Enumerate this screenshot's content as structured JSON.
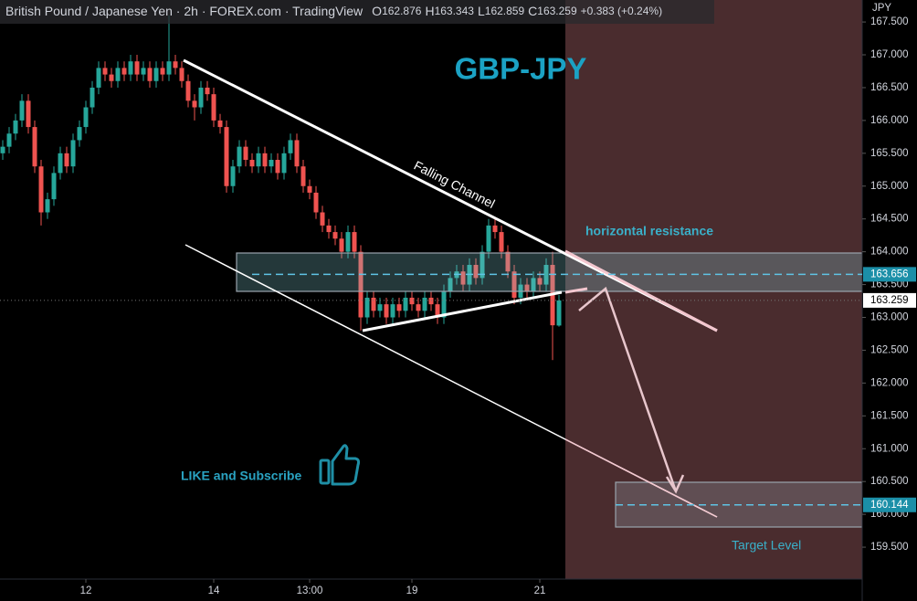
{
  "chart_data": {
    "type": "candlestick",
    "header": {
      "title": "British Pound / Japanese Yen · 2h · FOREX.com · TradingView",
      "open_label": "O",
      "open": "162.876",
      "high_label": "H",
      "high": "163.343",
      "low_label": "L",
      "low": "162.859",
      "close_label": "C",
      "close": "163.259",
      "change": "+0.383 (+0.24%)"
    },
    "annotations": {
      "pair": "GBP-JPY",
      "channel": "Falling Channel",
      "resistance": "horizontal resistance",
      "subscribe": "LIKE and Subscribe",
      "target": "Target Level"
    },
    "y_axis_title": "JPY",
    "up_color": "#26a69a",
    "down_color": "#ef5350",
    "grid": false,
    "open": [
      165.5,
      165.6,
      165.8,
      166.0,
      166.3,
      165.9,
      165.3,
      164.6,
      164.8,
      165.2,
      165.5,
      165.3,
      165.7,
      165.9,
      166.2,
      166.5,
      166.8,
      166.7,
      166.6,
      166.8,
      166.7,
      166.9,
      166.7,
      166.8,
      166.6,
      166.8,
      166.7,
      166.9,
      166.8,
      166.6,
      166.3,
      166.2,
      166.5,
      166.4,
      166.0,
      165.9,
      165.0,
      165.3,
      165.6,
      165.4,
      165.3,
      165.5,
      165.3,
      165.4,
      165.2,
      165.5,
      165.7,
      165.3,
      165.0,
      164.9,
      164.6,
      164.4,
      164.3,
      164.2,
      164.0,
      164.3,
      164.0,
      163.0,
      163.3,
      163.1,
      163.2,
      163.0,
      163.2,
      163.1,
      163.3,
      163.2,
      163.1,
      163.3,
      163.2,
      163.0,
      163.4,
      163.6,
      163.7,
      163.5,
      163.8,
      163.6,
      164.0,
      164.4,
      164.3,
      164.0,
      163.7,
      163.3,
      163.5,
      163.4,
      163.6,
      163.5,
      163.8,
      162.876
    ],
    "high": [
      165.7,
      165.9,
      166.1,
      166.4,
      166.4,
      166.0,
      165.4,
      164.9,
      165.3,
      165.6,
      165.6,
      165.8,
      166.0,
      166.3,
      166.6,
      166.9,
      166.9,
      166.8,
      166.9,
      166.9,
      167.0,
      167.0,
      166.9,
      166.9,
      166.9,
      166.9,
      167.6,
      167.0,
      166.9,
      166.7,
      166.4,
      166.6,
      166.6,
      166.5,
      166.1,
      166.0,
      165.4,
      165.7,
      165.7,
      165.5,
      165.6,
      165.6,
      165.5,
      165.5,
      165.6,
      165.8,
      165.8,
      165.4,
      165.1,
      165.0,
      164.7,
      164.5,
      164.4,
      164.3,
      164.4,
      164.4,
      164.1,
      163.4,
      163.4,
      163.3,
      163.3,
      163.3,
      163.3,
      163.4,
      163.4,
      163.3,
      163.4,
      163.4,
      163.3,
      163.5,
      163.7,
      163.8,
      163.8,
      163.9,
      163.9,
      164.1,
      164.5,
      164.5,
      164.4,
      164.1,
      163.8,
      163.6,
      163.6,
      163.7,
      163.7,
      163.9,
      164.0,
      163.343
    ],
    "low": [
      165.4,
      165.5,
      165.7,
      165.9,
      165.8,
      165.2,
      164.4,
      164.5,
      164.7,
      165.1,
      165.2,
      165.2,
      165.6,
      165.8,
      166.1,
      166.4,
      166.6,
      166.5,
      166.5,
      166.6,
      166.6,
      166.6,
      166.6,
      166.5,
      166.5,
      166.6,
      166.6,
      166.7,
      166.5,
      166.2,
      166.0,
      166.1,
      166.3,
      165.9,
      165.8,
      164.9,
      164.9,
      165.2,
      165.3,
      165.2,
      165.2,
      165.2,
      165.2,
      165.1,
      165.1,
      165.4,
      165.2,
      164.9,
      164.8,
      164.5,
      164.3,
      164.2,
      164.1,
      163.9,
      163.9,
      163.9,
      162.8,
      162.9,
      163.0,
      163.0,
      162.9,
      162.9,
      163.0,
      163.0,
      163.1,
      163.0,
      163.0,
      163.1,
      162.9,
      162.9,
      163.3,
      163.5,
      163.4,
      163.4,
      163.5,
      163.5,
      163.9,
      164.2,
      163.9,
      163.6,
      163.2,
      163.2,
      163.3,
      163.3,
      163.4,
      163.4,
      162.35,
      162.859
    ],
    "close": [
      165.6,
      165.8,
      166.0,
      166.3,
      165.9,
      165.3,
      164.6,
      164.8,
      165.2,
      165.5,
      165.3,
      165.7,
      165.9,
      166.2,
      166.5,
      166.8,
      166.7,
      166.6,
      166.8,
      166.7,
      166.9,
      166.7,
      166.8,
      166.6,
      166.8,
      166.7,
      166.9,
      166.8,
      166.6,
      166.3,
      166.2,
      166.5,
      166.4,
      166.0,
      165.9,
      165.0,
      165.3,
      165.6,
      165.4,
      165.3,
      165.5,
      165.3,
      165.4,
      165.2,
      165.5,
      165.7,
      165.3,
      165.0,
      164.9,
      164.6,
      164.4,
      164.3,
      164.2,
      164.0,
      164.3,
      164.0,
      163.0,
      163.3,
      163.1,
      163.2,
      163.0,
      163.2,
      163.1,
      163.3,
      163.2,
      163.1,
      163.3,
      163.2,
      163.0,
      163.4,
      163.6,
      163.7,
      163.5,
      163.8,
      163.6,
      164.0,
      164.4,
      164.3,
      164.0,
      163.7,
      163.3,
      163.5,
      163.4,
      163.6,
      163.5,
      163.8,
      162.88,
      163.259
    ],
    "xlim": [
      -0.43,
      134.43
    ],
    "xticks": [
      {
        "value": 13,
        "label": "12"
      },
      {
        "value": 33,
        "label": "14"
      },
      {
        "value": 48,
        "label": "13:00"
      },
      {
        "value": 64,
        "label": "19"
      },
      {
        "value": 84,
        "label": "21"
      }
    ],
    "ylim": [
      158.68,
      167.835
    ],
    "yticks": [
      {
        "value": 159.5,
        "label": "159.500"
      },
      {
        "value": 160,
        "label": "160.000"
      },
      {
        "value": 160.5,
        "label": "160.500"
      },
      {
        "value": 161,
        "label": "161.000"
      },
      {
        "value": 161.5,
        "label": "161.500"
      },
      {
        "value": 162,
        "label": "162.000"
      },
      {
        "value": 162.5,
        "label": "162.500"
      },
      {
        "value": 163,
        "label": "163.000"
      },
      {
        "value": 163.5,
        "label": "163.500"
      },
      {
        "value": 164,
        "label": "164.000"
      },
      {
        "value": 164.5,
        "label": "164.500"
      },
      {
        "value": 165,
        "label": "165.000"
      },
      {
        "value": 165.5,
        "label": "165.500"
      },
      {
        "value": 166,
        "label": "166.000"
      },
      {
        "value": 166.5,
        "label": "166.500"
      },
      {
        "value": 167,
        "label": "167.000"
      },
      {
        "value": 167.5,
        "label": "167.500"
      }
    ],
    "price_labels": [
      163.656,
      163.259,
      160.144
    ]
  }
}
